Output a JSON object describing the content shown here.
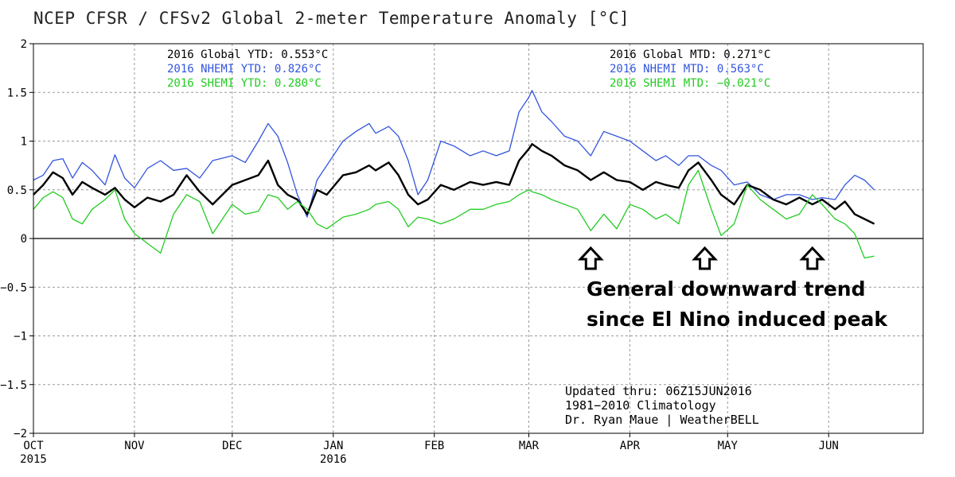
{
  "chart_data": {
    "type": "line",
    "title": "NCEP CFSR / CFSv2 Global 2-meter Temperature Anomaly [°C]",
    "xlabel": "",
    "ylabel": "",
    "ylim": [
      -2,
      2
    ],
    "yticks": [
      2,
      1.5,
      1,
      0.5,
      0,
      -0.5,
      -1,
      -1.5,
      -2
    ],
    "ytick_labels": [
      "2",
      "1.5",
      "1",
      "0.5",
      "0",
      "−0.5",
      "−1",
      "−1.5",
      "−2"
    ],
    "x_range": [
      "2015-10-01",
      "2016-06-30"
    ],
    "x_ticks": [
      {
        "date": "2015-10-01",
        "label": "OCT",
        "sub": "2015"
      },
      {
        "date": "2015-11-01",
        "label": "NOV",
        "sub": ""
      },
      {
        "date": "2015-12-01",
        "label": "DEC",
        "sub": ""
      },
      {
        "date": "2016-01-01",
        "label": "JAN",
        "sub": "2016"
      },
      {
        "date": "2016-02-01",
        "label": "FEB",
        "sub": ""
      },
      {
        "date": "2016-03-01",
        "label": "MAR",
        "sub": ""
      },
      {
        "date": "2016-04-01",
        "label": "APR",
        "sub": ""
      },
      {
        "date": "2016-05-01",
        "label": "MAY",
        "sub": ""
      },
      {
        "date": "2016-06-01",
        "label": "JUN",
        "sub": ""
      }
    ],
    "grid": true,
    "series": [
      {
        "name": "NHEMI",
        "color": "#3355dd",
        "width": 1.3,
        "points": [
          [
            "2015-10-01",
            0.6
          ],
          [
            "2015-10-04",
            0.65
          ],
          [
            "2015-10-07",
            0.8
          ],
          [
            "2015-10-10",
            0.82
          ],
          [
            "2015-10-13",
            0.62
          ],
          [
            "2015-10-16",
            0.78
          ],
          [
            "2015-10-19",
            0.7
          ],
          [
            "2015-10-23",
            0.55
          ],
          [
            "2015-10-26",
            0.86
          ],
          [
            "2015-10-29",
            0.62
          ],
          [
            "2015-11-01",
            0.52
          ],
          [
            "2015-11-05",
            0.72
          ],
          [
            "2015-11-09",
            0.8
          ],
          [
            "2015-11-13",
            0.7
          ],
          [
            "2015-11-17",
            0.72
          ],
          [
            "2015-11-21",
            0.62
          ],
          [
            "2015-11-25",
            0.8
          ],
          [
            "2015-12-01",
            0.85
          ],
          [
            "2015-12-05",
            0.78
          ],
          [
            "2015-12-09",
            1.0
          ],
          [
            "2015-12-12",
            1.18
          ],
          [
            "2015-12-15",
            1.05
          ],
          [
            "2015-12-18",
            0.78
          ],
          [
            "2015-12-21",
            0.45
          ],
          [
            "2015-12-24",
            0.22
          ],
          [
            "2015-12-27",
            0.6
          ],
          [
            "2015-12-30",
            0.75
          ],
          [
            "2016-01-04",
            1.0
          ],
          [
            "2016-01-08",
            1.1
          ],
          [
            "2016-01-12",
            1.18
          ],
          [
            "2016-01-14",
            1.08
          ],
          [
            "2016-01-18",
            1.15
          ],
          [
            "2016-01-21",
            1.05
          ],
          [
            "2016-01-24",
            0.8
          ],
          [
            "2016-01-27",
            0.45
          ],
          [
            "2016-01-30",
            0.6
          ],
          [
            "2016-02-03",
            1.0
          ],
          [
            "2016-02-07",
            0.95
          ],
          [
            "2016-02-12",
            0.85
          ],
          [
            "2016-02-16",
            0.9
          ],
          [
            "2016-02-20",
            0.85
          ],
          [
            "2016-02-24",
            0.9
          ],
          [
            "2016-02-27",
            1.3
          ],
          [
            "2016-03-01",
            1.45
          ],
          [
            "2016-03-02",
            1.52
          ],
          [
            "2016-03-05",
            1.3
          ],
          [
            "2016-03-08",
            1.2
          ],
          [
            "2016-03-12",
            1.05
          ],
          [
            "2016-03-16",
            1.0
          ],
          [
            "2016-03-20",
            0.85
          ],
          [
            "2016-03-24",
            1.1
          ],
          [
            "2016-03-28",
            1.05
          ],
          [
            "2016-04-01",
            1.0
          ],
          [
            "2016-04-05",
            0.9
          ],
          [
            "2016-04-09",
            0.8
          ],
          [
            "2016-04-12",
            0.85
          ],
          [
            "2016-04-16",
            0.75
          ],
          [
            "2016-04-19",
            0.85
          ],
          [
            "2016-04-22",
            0.85
          ],
          [
            "2016-04-26",
            0.75
          ],
          [
            "2016-04-29",
            0.7
          ],
          [
            "2016-05-03",
            0.55
          ],
          [
            "2016-05-07",
            0.58
          ],
          [
            "2016-05-11",
            0.45
          ],
          [
            "2016-05-15",
            0.4
          ],
          [
            "2016-05-19",
            0.45
          ],
          [
            "2016-05-23",
            0.45
          ],
          [
            "2016-05-27",
            0.4
          ],
          [
            "2016-05-30",
            0.42
          ],
          [
            "2016-06-03",
            0.4
          ],
          [
            "2016-06-06",
            0.55
          ],
          [
            "2016-06-09",
            0.65
          ],
          [
            "2016-06-12",
            0.6
          ],
          [
            "2016-06-15",
            0.5
          ]
        ]
      },
      {
        "name": "Global",
        "color": "#000000",
        "width": 2.4,
        "points": [
          [
            "2015-10-01",
            0.45
          ],
          [
            "2015-10-04",
            0.55
          ],
          [
            "2015-10-07",
            0.68
          ],
          [
            "2015-10-10",
            0.62
          ],
          [
            "2015-10-13",
            0.45
          ],
          [
            "2015-10-16",
            0.58
          ],
          [
            "2015-10-19",
            0.52
          ],
          [
            "2015-10-23",
            0.45
          ],
          [
            "2015-10-26",
            0.52
          ],
          [
            "2015-10-29",
            0.4
          ],
          [
            "2015-11-01",
            0.32
          ],
          [
            "2015-11-05",
            0.42
          ],
          [
            "2015-11-09",
            0.38
          ],
          [
            "2015-11-13",
            0.45
          ],
          [
            "2015-11-17",
            0.65
          ],
          [
            "2015-11-21",
            0.48
          ],
          [
            "2015-11-25",
            0.35
          ],
          [
            "2015-12-01",
            0.55
          ],
          [
            "2015-12-05",
            0.6
          ],
          [
            "2015-12-09",
            0.65
          ],
          [
            "2015-12-12",
            0.8
          ],
          [
            "2015-12-15",
            0.55
          ],
          [
            "2015-12-18",
            0.45
          ],
          [
            "2015-12-21",
            0.4
          ],
          [
            "2015-12-24",
            0.25
          ],
          [
            "2015-12-27",
            0.5
          ],
          [
            "2015-12-30",
            0.45
          ],
          [
            "2016-01-04",
            0.65
          ],
          [
            "2016-01-08",
            0.68
          ],
          [
            "2016-01-12",
            0.75
          ],
          [
            "2016-01-14",
            0.7
          ],
          [
            "2016-01-18",
            0.78
          ],
          [
            "2016-01-21",
            0.65
          ],
          [
            "2016-01-24",
            0.45
          ],
          [
            "2016-01-27",
            0.35
          ],
          [
            "2016-01-30",
            0.4
          ],
          [
            "2016-02-03",
            0.55
          ],
          [
            "2016-02-07",
            0.5
          ],
          [
            "2016-02-12",
            0.58
          ],
          [
            "2016-02-16",
            0.55
          ],
          [
            "2016-02-20",
            0.58
          ],
          [
            "2016-02-24",
            0.55
          ],
          [
            "2016-02-27",
            0.8
          ],
          [
            "2016-03-01",
            0.92
          ],
          [
            "2016-03-02",
            0.97
          ],
          [
            "2016-03-05",
            0.9
          ],
          [
            "2016-03-08",
            0.85
          ],
          [
            "2016-03-12",
            0.75
          ],
          [
            "2016-03-16",
            0.7
          ],
          [
            "2016-03-20",
            0.6
          ],
          [
            "2016-03-24",
            0.68
          ],
          [
            "2016-03-28",
            0.6
          ],
          [
            "2016-04-01",
            0.58
          ],
          [
            "2016-04-05",
            0.5
          ],
          [
            "2016-04-09",
            0.58
          ],
          [
            "2016-04-12",
            0.55
          ],
          [
            "2016-04-16",
            0.52
          ],
          [
            "2016-04-19",
            0.7
          ],
          [
            "2016-04-22",
            0.78
          ],
          [
            "2016-04-26",
            0.6
          ],
          [
            "2016-04-29",
            0.45
          ],
          [
            "2016-05-03",
            0.35
          ],
          [
            "2016-05-07",
            0.55
          ],
          [
            "2016-05-11",
            0.5
          ],
          [
            "2016-05-15",
            0.4
          ],
          [
            "2016-05-19",
            0.35
          ],
          [
            "2016-05-23",
            0.42
          ],
          [
            "2016-05-27",
            0.35
          ],
          [
            "2016-05-30",
            0.4
          ],
          [
            "2016-06-03",
            0.3
          ],
          [
            "2016-06-06",
            0.38
          ],
          [
            "2016-06-09",
            0.25
          ],
          [
            "2016-06-12",
            0.2
          ],
          [
            "2016-06-15",
            0.15
          ]
        ]
      },
      {
        "name": "SHEMI",
        "color": "#22cc22",
        "width": 1.3,
        "points": [
          [
            "2015-10-01",
            0.3
          ],
          [
            "2015-10-04",
            0.42
          ],
          [
            "2015-10-07",
            0.48
          ],
          [
            "2015-10-10",
            0.42
          ],
          [
            "2015-10-13",
            0.2
          ],
          [
            "2015-10-16",
            0.15
          ],
          [
            "2015-10-19",
            0.3
          ],
          [
            "2015-10-23",
            0.4
          ],
          [
            "2015-10-26",
            0.5
          ],
          [
            "2015-10-29",
            0.2
          ],
          [
            "2015-11-01",
            0.05
          ],
          [
            "2015-11-05",
            -0.05
          ],
          [
            "2015-11-09",
            -0.15
          ],
          [
            "2015-11-13",
            0.25
          ],
          [
            "2015-11-17",
            0.45
          ],
          [
            "2015-11-21",
            0.38
          ],
          [
            "2015-11-25",
            0.05
          ],
          [
            "2015-12-01",
            0.35
          ],
          [
            "2015-12-05",
            0.25
          ],
          [
            "2015-12-09",
            0.28
          ],
          [
            "2015-12-12",
            0.45
          ],
          [
            "2015-12-15",
            0.42
          ],
          [
            "2015-12-18",
            0.3
          ],
          [
            "2015-12-21",
            0.38
          ],
          [
            "2015-12-24",
            0.3
          ],
          [
            "2015-12-27",
            0.15
          ],
          [
            "2015-12-30",
            0.1
          ],
          [
            "2016-01-04",
            0.22
          ],
          [
            "2016-01-08",
            0.25
          ],
          [
            "2016-01-12",
            0.3
          ],
          [
            "2016-01-14",
            0.35
          ],
          [
            "2016-01-18",
            0.38
          ],
          [
            "2016-01-21",
            0.3
          ],
          [
            "2016-01-24",
            0.12
          ],
          [
            "2016-01-27",
            0.22
          ],
          [
            "2016-01-30",
            0.2
          ],
          [
            "2016-02-03",
            0.15
          ],
          [
            "2016-02-07",
            0.2
          ],
          [
            "2016-02-12",
            0.3
          ],
          [
            "2016-02-16",
            0.3
          ],
          [
            "2016-02-20",
            0.35
          ],
          [
            "2016-02-24",
            0.38
          ],
          [
            "2016-02-27",
            0.45
          ],
          [
            "2016-03-01",
            0.5
          ],
          [
            "2016-03-02",
            0.48
          ],
          [
            "2016-03-05",
            0.45
          ],
          [
            "2016-03-08",
            0.4
          ],
          [
            "2016-03-12",
            0.35
          ],
          [
            "2016-03-16",
            0.3
          ],
          [
            "2016-03-20",
            0.08
          ],
          [
            "2016-03-24",
            0.25
          ],
          [
            "2016-03-28",
            0.1
          ],
          [
            "2016-04-01",
            0.35
          ],
          [
            "2016-04-05",
            0.3
          ],
          [
            "2016-04-09",
            0.2
          ],
          [
            "2016-04-12",
            0.25
          ],
          [
            "2016-04-16",
            0.15
          ],
          [
            "2016-04-19",
            0.55
          ],
          [
            "2016-04-22",
            0.7
          ],
          [
            "2016-04-26",
            0.3
          ],
          [
            "2016-04-29",
            0.03
          ],
          [
            "2016-05-03",
            0.15
          ],
          [
            "2016-05-07",
            0.55
          ],
          [
            "2016-05-11",
            0.4
          ],
          [
            "2016-05-15",
            0.3
          ],
          [
            "2016-05-19",
            0.2
          ],
          [
            "2016-05-23",
            0.25
          ],
          [
            "2016-05-27",
            0.45
          ],
          [
            "2016-05-30",
            0.35
          ],
          [
            "2016-06-03",
            0.2
          ],
          [
            "2016-06-06",
            0.15
          ],
          [
            "2016-06-09",
            0.05
          ],
          [
            "2016-06-12",
            -0.2
          ],
          [
            "2016-06-15",
            -0.18
          ]
        ]
      }
    ]
  },
  "stats_ytd": [
    {
      "text": "2016 Global YTD: 0.553°C",
      "color": "#000000"
    },
    {
      "text": "2016 NHEMI YTD: 0.826°C",
      "color": "#3355dd"
    },
    {
      "text": "2016 SHEMI YTD: 0.280°C",
      "color": "#22cc22"
    }
  ],
  "stats_mtd": [
    {
      "text": "2016 Global MTD: 0.271°C",
      "color": "#000000"
    },
    {
      "text": "2016 NHEMI MTD: 0.563°C",
      "color": "#3355dd"
    },
    {
      "text": "2016 SHEMI MTD: −0.021°C",
      "color": "#22cc22"
    }
  ],
  "credits": [
    "Updated thru: 06Z15JUN2016",
    "1981−2010 Climatology",
    "Dr. Ryan Maue | WeatherBELL"
  ],
  "annotation": {
    "lines": [
      "General downward trend",
      "since El Nino induced peak"
    ],
    "arrow_dates": [
      "2016-03-20",
      "2016-04-24",
      "2016-05-27"
    ],
    "arrow_icon": "up-arrow-icon"
  }
}
